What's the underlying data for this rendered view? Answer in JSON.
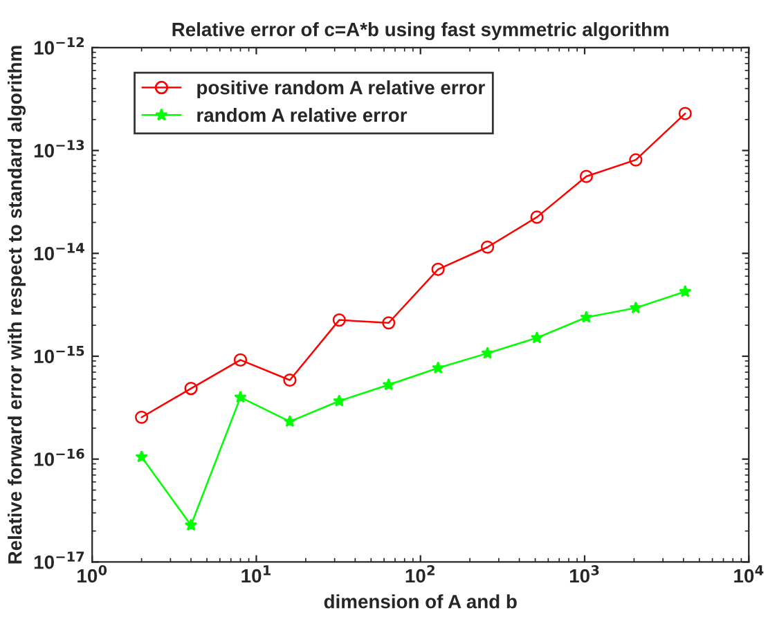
{
  "chart_data": {
    "type": "line",
    "title": "Relative error of c=A*b using fast symmetric algorithm",
    "xlabel": "dimension of A and b",
    "ylabel": "Relative forward error with respect to standard algorithm",
    "x": [
      2,
      4,
      8,
      16,
      32,
      64,
      128,
      256,
      512,
      1024,
      2048,
      4096
    ],
    "series": [
      {
        "name": "positive random A relative error",
        "color": "#ff0000",
        "marker": "circle",
        "values": [
          2.55e-16,
          4.86e-16,
          9.2e-16,
          5.86e-16,
          2.25e-15,
          2.11e-15,
          7e-15,
          1.15e-14,
          2.25e-14,
          5.6e-14,
          8.1e-14,
          2.29e-13
        ]
      },
      {
        "name": "random A relative error",
        "color": "#00ff00",
        "marker": "star",
        "values": [
          1.05e-16,
          2.28e-17,
          3.99e-16,
          2.32e-16,
          3.67e-16,
          5.28e-16,
          7.69e-16,
          1.07e-15,
          1.51e-15,
          2.39e-15,
          2.95e-15,
          4.25e-15
        ]
      }
    ],
    "log": "xy",
    "xlim": [
      1,
      10000
    ],
    "xticks": [
      {
        "value": 1,
        "label": "10$^{0}$"
      },
      {
        "value": 10,
        "label": "10$^{1}$"
      },
      {
        "value": 100,
        "label": "10$^{2}$"
      },
      {
        "value": 1000,
        "label": "10$^{3}$"
      },
      {
        "value": 10000,
        "label": "10$^{4}$"
      }
    ],
    "ylim": [
      1e-17,
      1e-12
    ],
    "yticks": [
      {
        "value": 1e-17,
        "label": "10$^{−17}$"
      },
      {
        "value": 1e-16,
        "label": "10$^{−16}$"
      },
      {
        "value": 1e-15,
        "label": "10$^{−15}$"
      },
      {
        "value": 1e-14,
        "label": "10$^{−14}$"
      },
      {
        "value": 1e-13,
        "label": "10$^{−13}$"
      },
      {
        "value": 1e-12,
        "label": "10$^{−12}$"
      }
    ],
    "grid": false,
    "legend": "top left",
    "line_style": "solid"
  }
}
